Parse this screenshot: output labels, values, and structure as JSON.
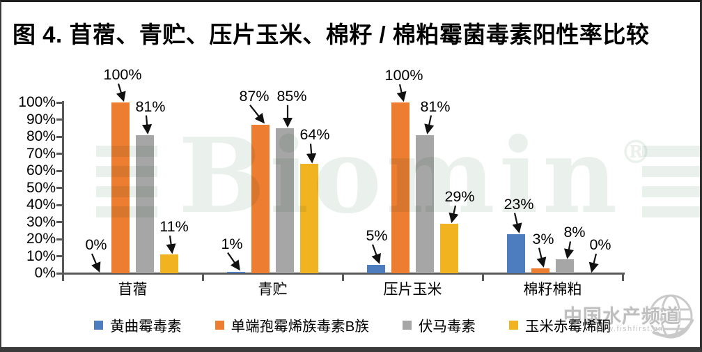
{
  "title": "图 4. 苜蓿、青贮、压片玉米、棉籽 / 棉粕霉菌毒素阳性率比较",
  "chart_data": {
    "type": "bar",
    "title": "图 4. 苜蓿、青贮、压片玉米、棉籽 / 棉粕霉菌毒素阳性率比较",
    "categories": [
      "苜蓿",
      "青贮",
      "压片玉米",
      "棉籽棉粕"
    ],
    "series": [
      {
        "name": "黄曲霉毒素",
        "color": "#4D7DBF",
        "values": [
          0,
          1,
          5,
          23
        ],
        "ann": [
          [
            0,
            -41
          ],
          [
            -6,
            -40
          ],
          [
            1,
            -42
          ],
          [
            4,
            -43
          ]
        ]
      },
      {
        "name": "单端孢霉烯族毒素B族",
        "color": "#ED7D31",
        "values": [
          100,
          87,
          100,
          3
        ],
        "ann": [
          [
            3,
            -40
          ],
          [
            -9,
            -41
          ],
          [
            5,
            -39
          ],
          [
            4,
            -42
          ]
        ]
      },
      {
        "name": "伏马毒素",
        "color": "#A6A6A6",
        "values": [
          81,
          85,
          81,
          8
        ],
        "ann": [
          [
            8,
            -41
          ],
          [
            10,
            -46
          ],
          [
            15,
            -41
          ],
          [
            14,
            -39
          ]
        ]
      },
      {
        "name": "玉米赤霉烯酮",
        "color": "#F2B321",
        "values": [
          11,
          64,
          29,
          0
        ],
        "ann": [
          [
            7,
            -40
          ],
          [
            8,
            -42
          ],
          [
            15,
            -39
          ],
          [
            16,
            -41
          ]
        ]
      }
    ],
    "y_ticks": [
      "0%",
      "10%",
      "20%",
      "30%",
      "40%",
      "50%",
      "60%",
      "70%",
      "80%",
      "90%",
      "100%"
    ],
    "y_tick_step": 10,
    "ylim": [
      0,
      100
    ],
    "xlabel": "",
    "ylabel": "",
    "grid": false,
    "legend_position": "bottom",
    "data_label_suffix": "%"
  },
  "watermark": {
    "brand": "Biomin",
    "registered": "®",
    "site_name": "中国水产频道",
    "site_url": "www.fishfirst.cn"
  }
}
